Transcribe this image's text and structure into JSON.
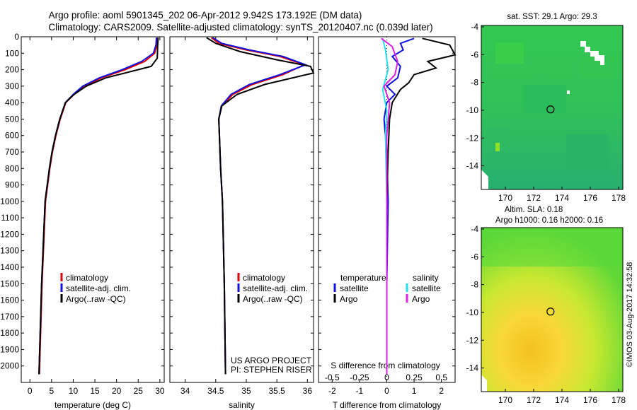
{
  "header": {
    "line1": "Argo profile: aoml 5901345_202 06-Apr-2012 9.942S 173.192E (DM data)",
    "line2": "Climatology: CARS2009. Satellite-adjusted climatology: synTS_20120407.nc (0.039d later)"
  },
  "depth_ticks": [
    0,
    100,
    200,
    300,
    400,
    500,
    600,
    700,
    800,
    900,
    1000,
    1100,
    1200,
    1300,
    1400,
    1500,
    1600,
    1700,
    1800,
    1900,
    2000
  ],
  "colors": {
    "climatology": "#e00000",
    "satellite": "#1010e0",
    "argo": "#000000",
    "salinity_sat": "#22e0f0",
    "salinity_argo": "#e020e0"
  },
  "chart_data": [
    {
      "type": "line",
      "xlabel": "temperature (deg C)",
      "ylabel": "",
      "xlim": [
        -2,
        31
      ],
      "ylim": [
        2100,
        0
      ],
      "xticks": [
        0,
        5,
        10,
        15,
        20,
        25,
        30
      ],
      "legend": [
        "climatology",
        "satellite-adj. clim.",
        "Argo(..raw -QC)"
      ],
      "series": [
        {
          "name": "climatology",
          "x": [
            29.4,
            29.3,
            28.8,
            26.5,
            22.0,
            16.5,
            12.5,
            10.2,
            8.3,
            7.0,
            6.0,
            5.2,
            4.6,
            3.6,
            2.8,
            2.2
          ],
          "y": [
            5,
            50,
            100,
            150,
            200,
            250,
            300,
            350,
            400,
            500,
            600,
            700,
            800,
            1000,
            1500,
            2050
          ]
        },
        {
          "name": "satellite-adj. clim.",
          "x": [
            29.2,
            29.1,
            28.5,
            25.8,
            21.3,
            16.0,
            12.2,
            10.0,
            8.2,
            6.9,
            5.9,
            5.1,
            4.5,
            3.5,
            2.7,
            2.1
          ],
          "y": [
            5,
            50,
            100,
            150,
            200,
            250,
            300,
            350,
            400,
            500,
            600,
            700,
            800,
            1000,
            1500,
            2050
          ]
        },
        {
          "name": "Argo(..raw -QC)",
          "x": [
            29.6,
            29.5,
            29.4,
            28.0,
            23.5,
            17.5,
            13.0,
            10.2,
            8.2,
            6.9,
            5.9,
            5.1,
            4.5,
            3.5,
            2.7,
            2.1
          ],
          "y": [
            5,
            50,
            130,
            180,
            210,
            250,
            300,
            350,
            400,
            500,
            600,
            700,
            800,
            1000,
            1500,
            2050
          ]
        }
      ]
    },
    {
      "type": "line",
      "xlabel": "salinity",
      "xlim": [
        33.75,
        36.1
      ],
      "ylim": [
        2100,
        0
      ],
      "xticks": [
        34,
        34.5,
        35,
        35.5,
        36
      ],
      "legend": [
        "climatology",
        "satellite-adj. clim.",
        "Argo(..raw -QC)"
      ],
      "annotation": [
        "US ARGO PROJECT",
        "PI: STEPHEN RISER"
      ],
      "series": [
        {
          "name": "climatology",
          "x": [
            34.43,
            34.55,
            35.0,
            35.55,
            35.95,
            35.6,
            35.1,
            34.78,
            34.6,
            34.55,
            34.56,
            34.58,
            34.61,
            34.64,
            34.66
          ],
          "y": [
            5,
            40,
            80,
            120,
            170,
            230,
            290,
            350,
            420,
            500,
            600,
            800,
            1000,
            1500,
            2050
          ]
        },
        {
          "name": "satellite-adj. clim.",
          "x": [
            34.45,
            34.6,
            35.05,
            35.6,
            35.97,
            35.55,
            35.05,
            34.75,
            34.59,
            34.55,
            34.56,
            34.58,
            34.61,
            34.64,
            34.66
          ],
          "y": [
            5,
            40,
            80,
            120,
            170,
            230,
            290,
            350,
            420,
            500,
            600,
            800,
            1000,
            1500,
            2050
          ]
        },
        {
          "name": "Argo(..raw -QC)",
          "x": [
            34.35,
            34.5,
            34.9,
            35.5,
            36.05,
            36.1,
            35.3,
            34.85,
            34.6,
            34.55,
            34.56,
            34.58,
            34.61,
            34.64,
            34.66
          ],
          "y": [
            5,
            40,
            90,
            140,
            180,
            220,
            290,
            350,
            420,
            500,
            600,
            800,
            1000,
            1500,
            2050
          ]
        }
      ]
    },
    {
      "type": "line",
      "xlabel": "T difference from climatology",
      "xlabel2": "S difference from climatology",
      "xlim": [
        -2.5,
        2.5
      ],
      "ylim": [
        2100,
        0
      ],
      "xticks": [
        -2,
        -1,
        0,
        1,
        2
      ],
      "xticks2": [
        "-0.5",
        "-0.25",
        "0",
        "0.25",
        "0.5"
      ],
      "legend_titles": [
        "temperature",
        "salinity"
      ],
      "legend": [
        "satellite",
        "Argo",
        "satellite",
        "Argo"
      ],
      "series": [
        {
          "name": "temperature satellite",
          "x": [
            1.0,
            0.5,
            0.6,
            0.2,
            0.5,
            0.4,
            0.0,
            0.3,
            0.0,
            -0.1,
            0.0,
            0.05,
            0.0,
            0.0
          ],
          "y": [
            10,
            40,
            80,
            120,
            180,
            250,
            300,
            350,
            400,
            500,
            700,
            1000,
            1500,
            2050
          ]
        },
        {
          "name": "temperature Argo",
          "x": [
            1.3,
            2.3,
            2.5,
            1.5,
            1.8,
            1.0,
            0.8,
            0.5,
            0.2,
            0.1,
            0.05,
            0.0,
            0.0,
            0.0
          ],
          "y": [
            10,
            50,
            110,
            150,
            190,
            230,
            280,
            320,
            400,
            500,
            700,
            1000,
            1500,
            2050
          ]
        },
        {
          "name": "salinity satellite",
          "x": [
            -0.15,
            -0.05,
            0.05,
            -0.15,
            0.0,
            -0.05,
            0.0,
            0.0,
            0.0
          ],
          "y": [
            10,
            80,
            200,
            320,
            450,
            600,
            1000,
            1500,
            2050
          ]
        },
        {
          "name": "salinity Argo",
          "x": [
            -0.2,
            0.2,
            0.4,
            0.3,
            -0.1,
            0.1,
            0.0,
            0.0,
            0.0
          ],
          "y": [
            10,
            60,
            150,
            230,
            300,
            400,
            600,
            1000,
            2050
          ]
        }
      ]
    },
    {
      "type": "heatmap",
      "title": "sat. SST: 29.1  Argo: 29.3",
      "xlim": [
        168.3,
        178.3
      ],
      "ylim": [
        -15.7,
        -3.9
      ],
      "xticks": [
        170,
        172,
        174,
        176,
        178
      ],
      "yticks": [
        -4,
        -6,
        -8,
        -10,
        -12,
        -14
      ],
      "marker": [
        173.19,
        -9.94
      ]
    },
    {
      "type": "heatmap",
      "title": "Altim. SLA: 0.18",
      "subtitle": "Argo h1000: 0.16 h2000: 0.16",
      "xlim": [
        168.3,
        178.3
      ],
      "ylim": [
        -15.7,
        -3.9
      ],
      "xticks": [
        170,
        172,
        174,
        176,
        178
      ],
      "yticks": [
        -4,
        -6,
        -8,
        -10,
        -12,
        -14
      ],
      "marker": [
        173.19,
        -9.94
      ]
    }
  ],
  "watermark": "©IMOS 03-Aug-2017 14:32:58"
}
